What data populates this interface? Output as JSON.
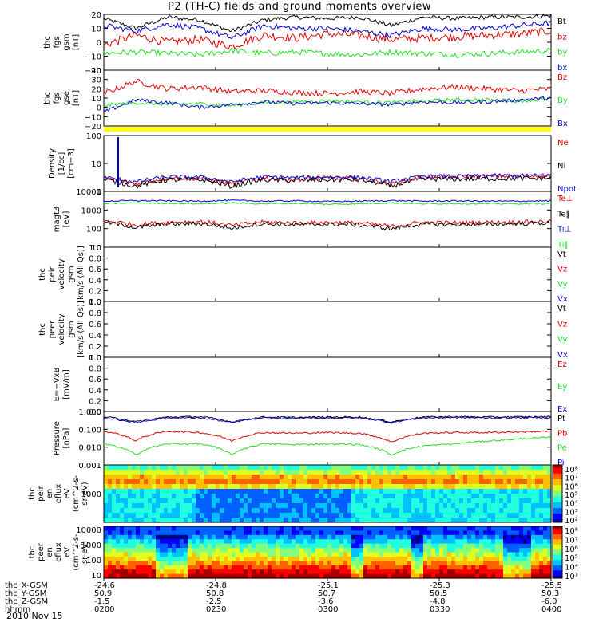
{
  "title": "P2 (TH-C) fields and ground moments overview",
  "date": "2010 Nov 15",
  "colors": {
    "black": "#000000",
    "red": "#dd0000",
    "green": "#22dd22",
    "blue": "#0000cc",
    "yellow": "#ffff00"
  },
  "chart_data": {
    "type": "line",
    "time_axis": {
      "labels": [
        "0200",
        "0230",
        "0300",
        "0330",
        "0400"
      ],
      "rows": [
        {
          "label": "thc_X-GSM",
          "values": [
            "-24.6",
            "-24.8",
            "-25.1",
            "-25.3",
            "-25.5"
          ]
        },
        {
          "label": "thc_Y-GSM",
          "values": [
            "50.9",
            "50.8",
            "50.7",
            "50.5",
            "50.3"
          ]
        },
        {
          "label": "thc_Z-GSM",
          "values": [
            "-1.5",
            "-2.5",
            "-3.6",
            "-4.8",
            "-6.0"
          ]
        },
        {
          "label": "hhmm",
          "values": [
            "0200",
            "0230",
            "0300",
            "0330",
            "0400"
          ]
        }
      ]
    },
    "panels": [
      {
        "id": "fgs",
        "ylabel_lines": [
          "thc",
          "fgs",
          "gsm",
          "[nT]"
        ],
        "ylim": [
          -20,
          20
        ],
        "ticks": [
          "20",
          "10",
          "0",
          "−10",
          "−20"
        ],
        "series": [
          {
            "name": "Bt",
            "color": "black",
            "levels": [
              17,
              10,
              18,
              16,
              8,
              16,
              18,
              17,
              18,
              12,
              18,
              17,
              18,
              18,
              19
            ],
            "noise": 1.5
          },
          {
            "name": "bz",
            "color": "red",
            "levels": [
              -2,
              5,
              0,
              2,
              -3,
              5,
              3,
              6,
              5,
              2,
              3,
              4,
              5,
              6,
              8
            ],
            "noise": 3
          },
          {
            "name": "by",
            "color": "green",
            "levels": [
              -8,
              -7,
              -8,
              -9,
              -6,
              -8,
              -7,
              -8,
              -9,
              -7,
              -8,
              -9,
              -8,
              -7,
              -6
            ],
            "noise": 2
          },
          {
            "name": "bx",
            "color": "blue",
            "levels": [
              12,
              8,
              13,
              10,
              3,
              12,
              10,
              10,
              8,
              5,
              10,
              9,
              10,
              12,
              14
            ],
            "noise": 2
          }
        ]
      },
      {
        "id": "fgs-gse",
        "ylabel_lines": [
          "thc",
          "fgs",
          "gse",
          "[nT]"
        ],
        "ylim": [
          -20,
          40
        ],
        "ticks": [
          "40",
          "30",
          "20",
          "10",
          "0",
          "−10",
          "−20"
        ],
        "series": [
          {
            "name": "Bz",
            "color": "red",
            "levels": [
              15,
              28,
              20,
              22,
              17,
              18,
              16,
              15,
              17,
              15,
              20,
              22,
              20,
              18,
              20
            ],
            "noise": 3
          },
          {
            "name": "By",
            "color": "green",
            "levels": [
              2,
              5,
              3,
              4,
              2,
              5,
              6,
              7,
              6,
              5,
              7,
              8,
              8,
              7,
              9
            ],
            "noise": 2
          },
          {
            "name": "Bx",
            "color": "blue",
            "levels": [
              -5,
              8,
              5,
              0,
              3,
              6,
              4,
              5,
              4,
              3,
              6,
              5,
              6,
              8,
              10
            ],
            "noise": 2
          }
        ]
      },
      {
        "id": "density",
        "ylabel_lines": [
          "Density",
          "[1/cc]",
          "[cm−3]"
        ],
        "ylim": [
          1,
          200
        ],
        "log": true,
        "ticks": [
          "100",
          "10",
          "1"
        ],
        "series": [
          {
            "name": "Ne",
            "color": "red",
            "levels": [
              3.5,
              2,
              3.5,
              3.5,
              2,
              3.5,
              3.2,
              3.5,
              3.4,
              2,
              3.8,
              4,
              4.2,
              4.3,
              4.5
            ],
            "noise": 0.1
          },
          {
            "name": "Ni",
            "color": "black",
            "levels": [
              3,
              1.6,
              3,
              3,
              1.6,
              3,
              2.8,
              3,
              3,
              1.6,
              3.2,
              3.2,
              3.3,
              3.4,
              3.5
            ],
            "noise": 0.1
          },
          {
            "name": "Npot",
            "color": "blue",
            "levels": [
              3.8,
              2.4,
              4,
              3.9,
              2.4,
              4,
              3.6,
              4,
              3.8,
              2.5,
              4.2,
              4.2,
              4.4,
              4.5,
              4.6
            ],
            "noise": 0.08
          }
        ]
      },
      {
        "id": "temperature",
        "ylabel_lines": [
          "magt3",
          "[eV]"
        ],
        "ylim": [
          1,
          10000
        ],
        "log": true,
        "ticks": [
          "10000",
          "1000",
          "100",
          "10"
        ],
        "series": [
          {
            "name": "Te⊥",
            "color": "red",
            "levels": [
              80,
              40,
              60,
              70,
              35,
              65,
              55,
              60,
              55,
              30,
              60,
              55,
              60,
              65,
              70
            ],
            "noise": 0.15
          },
          {
            "name": "Te∥",
            "color": "black",
            "levels": [
              60,
              25,
              45,
              50,
              22,
              48,
              40,
              45,
              40,
              20,
              45,
              42,
              45,
              50,
              55
            ],
            "noise": 0.15
          },
          {
            "name": "Ti⊥",
            "color": "blue",
            "levels": [
              2000,
              2200,
              2100,
              2000,
              2300,
              2000,
              2100,
              1900,
              2000,
              2200,
              2000,
              2100,
              2000,
              2000,
              2100
            ],
            "noise": 0.05
          },
          {
            "name": "Ti∥",
            "color": "green",
            "levels": [
              1300,
              1500,
              1400,
              1300,
              1500,
              1300,
              1400,
              1200,
              1300,
              1500,
              1300,
              1350,
              1300,
              1300,
              1350
            ],
            "noise": 0.05
          }
        ]
      },
      {
        "id": "peir-velocity",
        "ylabel_lines": [
          "thc",
          "peir",
          "velocity",
          "gsm",
          "[km/s (All Qs)]"
        ],
        "ylim": [
          0,
          1
        ],
        "ticks": [
          "1.0",
          "0.8",
          "0.6",
          "0.4",
          "0.2",
          "0.0"
        ],
        "series": [
          {
            "name": "Vt",
            "color": "black"
          },
          {
            "name": "Vz",
            "color": "red"
          },
          {
            "name": "Vy",
            "color": "green"
          },
          {
            "name": "Vx",
            "color": "blue"
          }
        ]
      },
      {
        "id": "peer-velocity",
        "ylabel_lines": [
          "thc",
          "peer",
          "velocity",
          "gsm",
          "[km/s (All Qs)]"
        ],
        "ylim": [
          0,
          1
        ],
        "ticks": [
          "1.0",
          "0.8",
          "0.6",
          "0.4",
          "0.2",
          "0.0"
        ],
        "series": [
          {
            "name": "Vt",
            "color": "black"
          },
          {
            "name": "Vz",
            "color": "red"
          },
          {
            "name": "Vy",
            "color": "green"
          },
          {
            "name": "Vx",
            "color": "blue"
          }
        ]
      },
      {
        "id": "efield",
        "ylabel_lines": [
          "E=−VxB",
          "[mV/m]"
        ],
        "ylim": [
          0,
          1
        ],
        "ticks": [
          "1.0",
          "0.8",
          "0.6",
          "0.4",
          "0.2",
          "0.0"
        ],
        "series": [
          {
            "name": "Ez",
            "color": "red"
          },
          {
            "name": "Ey",
            "color": "green"
          },
          {
            "name": "Ex",
            "color": "blue"
          }
        ]
      },
      {
        "id": "pressure",
        "ylabel_lines": [
          "Pressure",
          "[nPa]"
        ],
        "ylim": [
          0.001,
          2
        ],
        "log": true,
        "ticks": [
          "1.000",
          "0.100",
          "0.010",
          "0.001"
        ],
        "series": [
          {
            "name": "Pt",
            "color": "black",
            "levels": [
              0.95,
              0.45,
              0.9,
              0.95,
              0.45,
              0.9,
              0.85,
              0.9,
              0.9,
              0.45,
              0.9,
              0.95,
              0.9,
              0.92,
              0.95
            ],
            "noise": 0.05
          },
          {
            "name": "Pb",
            "color": "red",
            "levels": [
              0.12,
              0.03,
              0.12,
              0.1,
              0.03,
              0.1,
              0.09,
              0.1,
              0.09,
              0.025,
              0.09,
              0.1,
              0.1,
              0.11,
              0.12
            ],
            "noise": 0.05
          },
          {
            "name": "Pe",
            "color": "green",
            "levels": [
              0.02,
              0.004,
              0.02,
              0.02,
              0.004,
              0.02,
              0.018,
              0.02,
              0.018,
              0.004,
              0.015,
              0.02,
              0.03,
              0.04,
              0.05
            ],
            "noise": 0.05
          },
          {
            "name": "Pi",
            "color": "blue",
            "levels": [
              0.8,
              0.4,
              0.8,
              0.8,
              0.4,
              0.8,
              0.75,
              0.8,
              0.8,
              0.4,
              0.8,
              0.85,
              0.8,
              0.82,
              0.85
            ],
            "noise": 0.05
          }
        ]
      }
    ],
    "spectrograms": [
      {
        "id": "peir-eflux",
        "type": "heatmap",
        "ylabel_lines": [
          "thc",
          "peir",
          "en",
          "eflux",
          "eV",
          "(cm^2-s-",
          "sr-eV)"
        ],
        "ytick": "1000",
        "cbar_ticks": [
          "10⁸",
          "10⁷",
          "10⁶",
          "10⁵",
          "10⁴",
          "10³",
          "10²"
        ]
      },
      {
        "id": "peer-eflux",
        "type": "heatmap",
        "ylabel_lines": [
          "thc",
          "peer",
          "en",
          "eflux",
          "eV",
          "(cm^2-s-",
          "sr-eV)"
        ],
        "yticks": [
          "10000",
          "1000",
          "100",
          "10"
        ],
        "cbar_ticks": [
          "10⁸",
          "10⁷",
          "10⁶",
          "10⁵",
          "10⁴",
          "10³"
        ]
      }
    ]
  }
}
